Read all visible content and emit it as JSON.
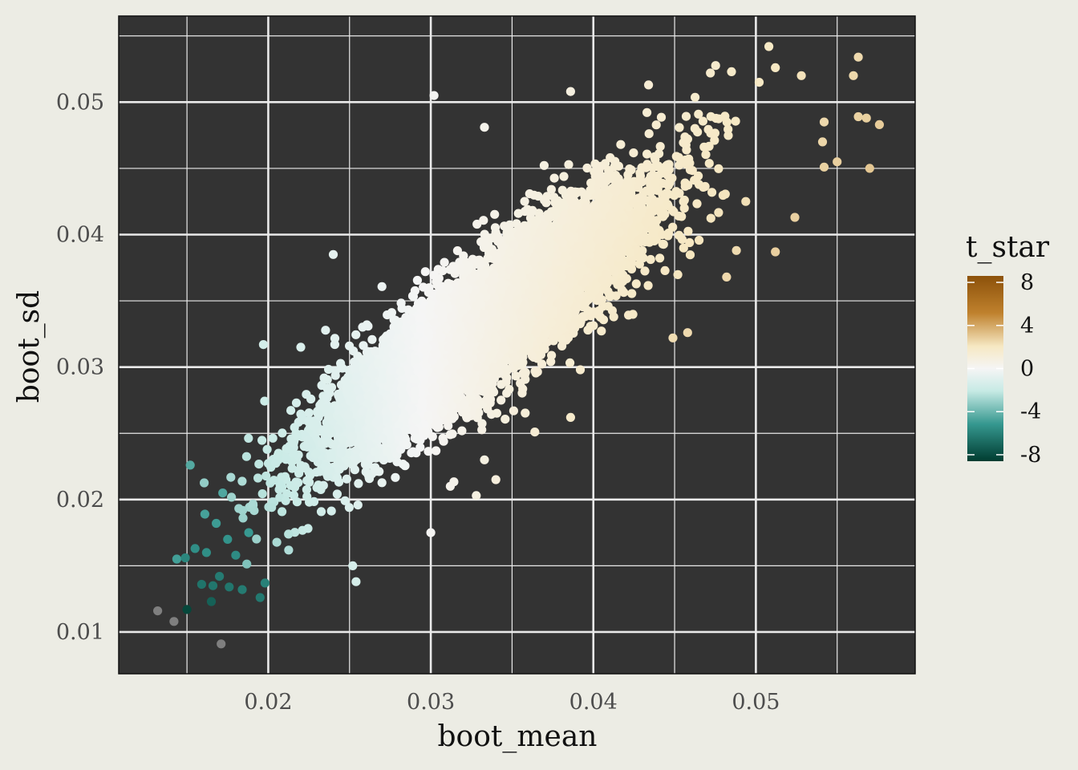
{
  "colors": {
    "page_background": "#ECECE4",
    "panel_background": "#333333",
    "grid": "#EAEAEA",
    "na_point": "#7F7F7F",
    "scale": [
      "#003C30",
      "#35978F",
      "#C7EAE5",
      "#F5F5F5",
      "#F6E8C3",
      "#BF812D",
      "#8C510A"
    ]
  },
  "chart_data": {
    "type": "scatter",
    "xlabel": "boot_mean",
    "ylabel": "boot_sd",
    "xlim": [
      0.0108,
      0.0598
    ],
    "ylim": [
      0.00685,
      0.0565
    ],
    "x_ticks": [
      0.02,
      0.03,
      0.04,
      0.05
    ],
    "x_tick_labels": [
      "0.02",
      "0.03",
      "0.04",
      "0.05"
    ],
    "y_ticks": [
      0.01,
      0.02,
      0.03,
      0.04,
      0.05
    ],
    "y_tick_labels": [
      "0.01",
      "0.02",
      "0.03",
      "0.04",
      "0.05"
    ],
    "grid": true,
    "color_variable": "t_star",
    "color_scale": {
      "palette": "BrBG",
      "limits": [
        -8.6,
        8.6
      ],
      "breaks": [
        8,
        4,
        0,
        -4,
        -8
      ],
      "break_labels": [
        "8",
        "4",
        "0",
        "-4",
        "-8"
      ]
    },
    "legend_position": "right",
    "cloud": {
      "n_points": 9000,
      "center_mean": 0.0335,
      "center_sd": 0.0335,
      "spread_along_diagonal": 0.0065,
      "spread_across_diagonal": 0.0017
    },
    "outlier_points": [
      {
        "x": 0.0563,
        "y": 0.0534
      },
      {
        "x": 0.0576,
        "y": 0.0483
      },
      {
        "x": 0.0568,
        "y": 0.0488
      },
      {
        "x": 0.0508,
        "y": 0.0542
      },
      {
        "x": 0.0563,
        "y": 0.0489
      },
      {
        "x": 0.056,
        "y": 0.052
      },
      {
        "x": 0.055,
        "y": 0.0455
      },
      {
        "x": 0.057,
        "y": 0.045
      },
      {
        "x": 0.0542,
        "y": 0.0485
      },
      {
        "x": 0.0528,
        "y": 0.052
      },
      {
        "x": 0.0512,
        "y": 0.0526
      },
      {
        "x": 0.0502,
        "y": 0.0515
      },
      {
        "x": 0.0485,
        "y": 0.0523
      },
      {
        "x": 0.0472,
        "y": 0.0522
      },
      {
        "x": 0.0541,
        "y": 0.047
      },
      {
        "x": 0.0542,
        "y": 0.0451
      },
      {
        "x": 0.0524,
        "y": 0.0413
      },
      {
        "x": 0.0512,
        "y": 0.0387
      },
      {
        "x": 0.0488,
        "y": 0.0388
      },
      {
        "x": 0.0482,
        "y": 0.0368
      },
      {
        "x": 0.0458,
        "y": 0.0326
      },
      {
        "x": 0.0449,
        "y": 0.0322
      },
      {
        "x": 0.0392,
        "y": 0.0298
      },
      {
        "x": 0.0386,
        "y": 0.0262
      },
      {
        "x": 0.0351,
        "y": 0.0267
      },
      {
        "x": 0.0364,
        "y": 0.0251
      },
      {
        "x": 0.0302,
        "y": 0.0505
      },
      {
        "x": 0.0386,
        "y": 0.0508
      },
      {
        "x": 0.0434,
        "y": 0.0513
      },
      {
        "x": 0.0333,
        "y": 0.0481
      },
      {
        "x": 0.024,
        "y": 0.0385
      },
      {
        "x": 0.022,
        "y": 0.0315
      },
      {
        "x": 0.0197,
        "y": 0.0317
      },
      {
        "x": 0.03,
        "y": 0.0175
      },
      {
        "x": 0.0312,
        "y": 0.021
      },
      {
        "x": 0.0254,
        "y": 0.0138
      },
      {
        "x": 0.0252,
        "y": 0.015
      },
      {
        "x": 0.0328,
        "y": 0.0203
      },
      {
        "x": 0.034,
        "y": 0.0215
      },
      {
        "x": 0.0333,
        "y": 0.023
      }
    ],
    "low_points": [
      {
        "x": 0.0152,
        "y": 0.0226,
        "t": -4.5
      },
      {
        "x": 0.0149,
        "y": 0.0156,
        "t": -5.8
      },
      {
        "x": 0.0155,
        "y": 0.0163,
        "t": -5.5
      },
      {
        "x": 0.0162,
        "y": 0.016,
        "t": -5.5
      },
      {
        "x": 0.0161,
        "y": 0.0189,
        "t": -4.8
      },
      {
        "x": 0.0159,
        "y": 0.0136,
        "t": -6.5
      },
      {
        "x": 0.0166,
        "y": 0.0135,
        "t": -6.4
      },
      {
        "x": 0.017,
        "y": 0.0142,
        "t": -6.2
      },
      {
        "x": 0.0165,
        "y": 0.0123,
        "t": -7.2
      },
      {
        "x": 0.0176,
        "y": 0.0134,
        "t": -6.4
      },
      {
        "x": 0.0184,
        "y": 0.0132,
        "t": -6.2
      },
      {
        "x": 0.0195,
        "y": 0.0126,
        "t": -6.3
      },
      {
        "x": 0.0198,
        "y": 0.0137,
        "t": -6.0
      },
      {
        "x": 0.0175,
        "y": 0.017,
        "t": -5.3
      },
      {
        "x": 0.0168,
        "y": 0.0182,
        "t": -5.0
      },
      {
        "x": 0.0188,
        "y": 0.0175,
        "t": -5.1
      },
      {
        "x": 0.0172,
        "y": 0.0205,
        "t": -4.6
      },
      {
        "x": 0.018,
        "y": 0.0158,
        "t": -5.6
      },
      {
        "x": 0.015,
        "y": 0.0117,
        "t": -8.2
      },
      {
        "x": 0.0132,
        "y": 0.0116,
        "t": null
      },
      {
        "x": 0.0142,
        "y": 0.0108,
        "t": null
      },
      {
        "x": 0.0171,
        "y": 0.0091,
        "t": null
      }
    ]
  }
}
